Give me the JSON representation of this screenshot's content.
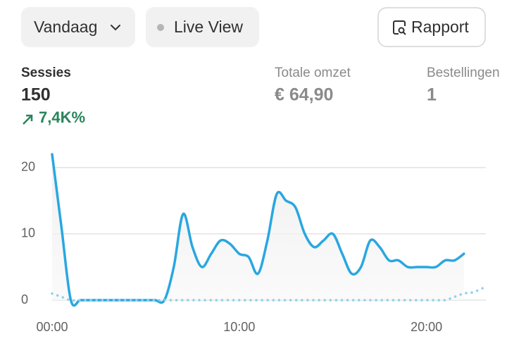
{
  "toolbar": {
    "date_button": "Vandaag",
    "live_button": "Live View",
    "report_button": "Rapport"
  },
  "metrics": [
    {
      "label": "Sessies",
      "value": "150",
      "change": "7,4K%"
    },
    {
      "label": "Totale omzet",
      "value": "€ 64,90"
    },
    {
      "label": "Bestellingen",
      "value": "1"
    }
  ],
  "chart_data": {
    "type": "line",
    "x": [
      0,
      0.5,
      1,
      1.5,
      2,
      2.5,
      3,
      3.5,
      4,
      4.5,
      5,
      5.5,
      6,
      6.5,
      7,
      7.5,
      8,
      8.5,
      9,
      9.5,
      10,
      10.5,
      11,
      11.5,
      12,
      12.5,
      13,
      13.5,
      14,
      14.5,
      15,
      15.5,
      16,
      16.5,
      17,
      17.5,
      18,
      18.5,
      19,
      19.5,
      20,
      20.5,
      21,
      21.5,
      22,
      22.5,
      23
    ],
    "series": [
      {
        "color": "#29a7e1",
        "style": "solid",
        "values": [
          22,
          11,
          0,
          0,
          0,
          0,
          0,
          0,
          0,
          0,
          0,
          0,
          0,
          5,
          13,
          8,
          5,
          7,
          9,
          8.5,
          7,
          6.5,
          4,
          9,
          16,
          15,
          14,
          10,
          8,
          9,
          10,
          7,
          4,
          5,
          9,
          8,
          6,
          6,
          5,
          5,
          5,
          5,
          6,
          6,
          7,
          null,
          null
        ]
      },
      {
        "color": "#8fd0ee",
        "style": "dotted",
        "values": [
          1,
          0.5,
          0,
          0,
          0,
          0,
          0,
          0,
          0,
          0,
          0,
          0,
          0,
          0,
          0,
          0,
          0,
          0,
          0,
          0,
          0,
          0,
          0,
          0,
          0,
          0,
          0,
          0,
          0,
          0,
          0,
          0,
          0,
          0,
          0,
          0,
          0,
          0,
          0,
          0,
          0,
          0,
          0,
          0.5,
          1,
          1.2,
          1.8
        ]
      }
    ],
    "xlim": [
      0,
      23.25
    ],
    "xticks": [
      {
        "value": 0,
        "label": "00:00"
      },
      {
        "value": 10,
        "label": "10:00"
      },
      {
        "value": 20,
        "label": "20:00"
      }
    ],
    "ylim": [
      0,
      22
    ],
    "yticks": [
      0,
      10,
      20
    ],
    "grid": true
  }
}
